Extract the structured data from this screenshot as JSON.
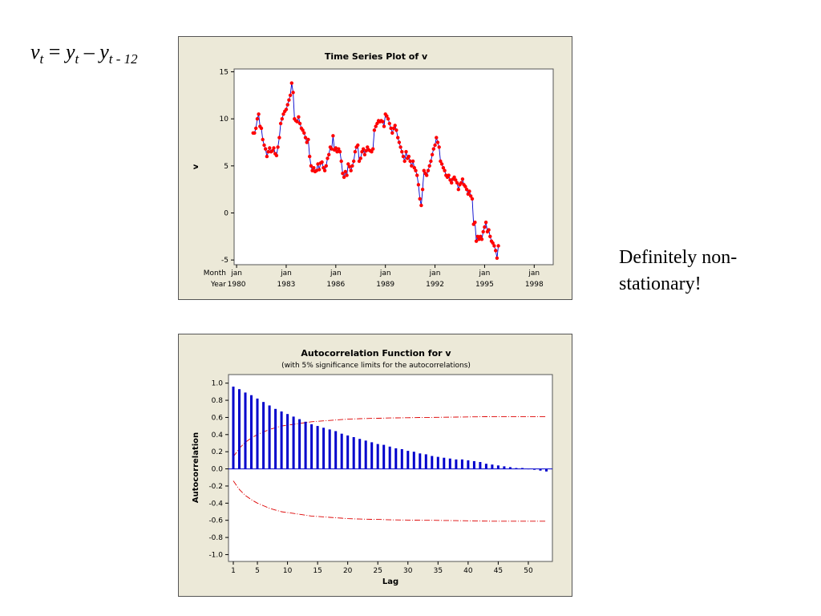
{
  "slide": {
    "formula": {
      "v": "v",
      "t": "t",
      "eq": " = ",
      "y": "y",
      "minus": " – ",
      "sub2": "t - 12"
    },
    "note": "Definitely non-stationary!"
  },
  "colors": {
    "panel_bg": "#ece9d8",
    "series_line": "#0000cc",
    "series_point": "#ff0000",
    "acf_bar": "#0000cc",
    "limit_line": "#dd0000"
  },
  "chart_data": [
    {
      "type": "line",
      "title": "Time Series Plot of v",
      "ylabel": "v",
      "xlabel": "",
      "ylim": [
        -5.5,
        15.3
      ],
      "yticks": [
        -5,
        0,
        5,
        10,
        15
      ],
      "x_start": "1981-01",
      "x_tick_row_labels": [
        "Month",
        "Year"
      ],
      "x_ticks": [
        {
          "month": "jan",
          "year": "1980"
        },
        {
          "month": "jan",
          "year": "1983"
        },
        {
          "month": "jan",
          "year": "1986"
        },
        {
          "month": "jan",
          "year": "1989"
        },
        {
          "month": "jan",
          "year": "1992"
        },
        {
          "month": "jan",
          "year": "1995"
        },
        {
          "month": "jan",
          "year": "1998"
        }
      ],
      "values": [
        8.5,
        8.5,
        9.0,
        10.0,
        10.5,
        9.2,
        9.0,
        7.8,
        7.2,
        6.8,
        6.0,
        6.5,
        6.9,
        6.5,
        6.6,
        6.9,
        6.3,
        6.1,
        7.0,
        8.0,
        9.5,
        10.0,
        10.5,
        10.8,
        11.0,
        11.5,
        12.0,
        12.5,
        13.8,
        12.8,
        10.0,
        9.8,
        9.7,
        10.2,
        9.5,
        9.0,
        8.8,
        8.5,
        8.0,
        7.5,
        7.8,
        6.0,
        5.0,
        4.5,
        4.8,
        4.4,
        4.5,
        5.2,
        4.6,
        5.3,
        5.4,
        4.8,
        4.5,
        5.0,
        5.8,
        6.2,
        7.0,
        6.8,
        8.2,
        6.7,
        6.9,
        6.5,
        6.8,
        6.5,
        5.5,
        4.2,
        3.8,
        4.4,
        4.0,
        5.2,
        4.9,
        4.5,
        5.0,
        5.5,
        6.5,
        7.0,
        7.2,
        5.5,
        5.8,
        6.5,
        6.8,
        6.2,
        6.6,
        7.0,
        6.7,
        6.6,
        6.5,
        6.8,
        8.8,
        9.2,
        9.5,
        9.8,
        9.7,
        9.8,
        9.7,
        9.2,
        10.5,
        10.3,
        10.0,
        9.5,
        9.0,
        8.5,
        9.0,
        9.3,
        8.8,
        8.0,
        7.5,
        7.0,
        6.5,
        6.0,
        5.5,
        6.5,
        5.8,
        6.0,
        5.5,
        5.0,
        5.5,
        4.8,
        4.5,
        4.0,
        3.0,
        1.5,
        0.8,
        2.5,
        4.5,
        4.2,
        4.0,
        4.5,
        5.0,
        5.5,
        6.2,
        6.8,
        7.2,
        8.0,
        7.5,
        7.0,
        5.5,
        5.2,
        4.8,
        4.5,
        4.0,
        3.8,
        4.0,
        3.5,
        3.2,
        3.6,
        3.8,
        3.5,
        3.2,
        2.5,
        3.0,
        3.2,
        3.6,
        3.0,
        2.8,
        2.5,
        2.0,
        2.3,
        1.8,
        1.5,
        -1.2,
        -1.0,
        -3.0,
        -2.5,
        -2.8,
        -2.5,
        -2.8,
        -2.0,
        -1.5,
        -1.0,
        -2.0,
        -1.8,
        -2.5,
        -3.0,
        -3.2,
        -3.5,
        -4.0,
        -4.8,
        -3.5
      ]
    },
    {
      "type": "bar",
      "title": "Autocorrelation Function for v",
      "subtitle": "(with 5% significance limits for the autocorrelations)",
      "xlabel": "Lag",
      "ylabel": "Autocorrelation",
      "ylim": [
        -1.08,
        1.1
      ],
      "xlim": [
        0.2,
        54
      ],
      "yticks": [
        1.0,
        0.8,
        0.6,
        0.4,
        0.2,
        0.0,
        -0.2,
        -0.4,
        -0.6,
        -0.8,
        -1.0
      ],
      "ytick_labels": [
        "1.0",
        "0.8",
        "0.6",
        "0.4",
        "0.2",
        "0.0",
        "-0.2",
        "-0.4",
        "-0.6",
        "-0.8",
        "-1.0"
      ],
      "xticks": [
        1,
        5,
        10,
        15,
        20,
        25,
        30,
        35,
        40,
        45,
        50
      ],
      "lags_start": 1,
      "values": [
        0.96,
        0.93,
        0.89,
        0.86,
        0.82,
        0.78,
        0.74,
        0.7,
        0.67,
        0.64,
        0.61,
        0.58,
        0.55,
        0.52,
        0.5,
        0.48,
        0.46,
        0.44,
        0.41,
        0.39,
        0.37,
        0.35,
        0.33,
        0.31,
        0.29,
        0.28,
        0.26,
        0.24,
        0.23,
        0.21,
        0.2,
        0.18,
        0.17,
        0.15,
        0.14,
        0.13,
        0.12,
        0.11,
        0.11,
        0.1,
        0.09,
        0.08,
        0.06,
        0.05,
        0.04,
        0.03,
        0.02,
        0.01,
        0.01,
        0.0,
        -0.01,
        -0.02,
        -0.03
      ],
      "upper_limit": [
        0.14,
        0.24,
        0.31,
        0.36,
        0.4,
        0.43,
        0.46,
        0.48,
        0.5,
        0.51,
        0.52,
        0.53,
        0.54,
        0.55,
        0.555,
        0.56,
        0.565,
        0.57,
        0.575,
        0.58,
        0.583,
        0.585,
        0.587,
        0.589,
        0.59,
        0.592,
        0.594,
        0.595,
        0.596,
        0.597,
        0.598,
        0.599,
        0.6,
        0.6,
        0.601,
        0.602,
        0.603,
        0.604,
        0.605,
        0.606,
        0.607,
        0.608,
        0.609,
        0.61,
        0.61,
        0.61,
        0.61,
        0.61,
        0.61,
        0.61,
        0.61,
        0.61,
        0.61
      ]
    }
  ]
}
